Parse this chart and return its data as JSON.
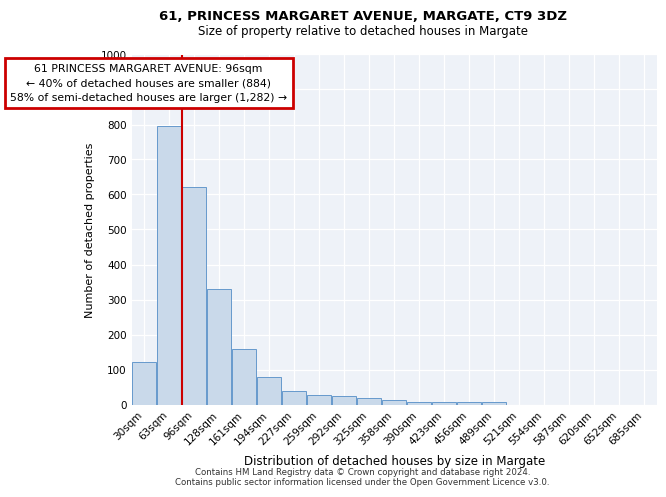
{
  "title1": "61, PRINCESS MARGARET AVENUE, MARGATE, CT9 3DZ",
  "title2": "Size of property relative to detached houses in Margate",
  "xlabel": "Distribution of detached houses by size in Margate",
  "ylabel": "Number of detached properties",
  "categories": [
    "30sqm",
    "63sqm",
    "96sqm",
    "128sqm",
    "161sqm",
    "194sqm",
    "227sqm",
    "259sqm",
    "292sqm",
    "325sqm",
    "358sqm",
    "390sqm",
    "423sqm",
    "456sqm",
    "489sqm",
    "521sqm",
    "554sqm",
    "587sqm",
    "620sqm",
    "652sqm",
    "685sqm"
  ],
  "values": [
    122,
    795,
    620,
    330,
    160,
    78,
    40,
    28,
    25,
    20,
    13,
    7,
    7,
    8,
    8,
    0,
    0,
    0,
    0,
    0,
    0
  ],
  "bar_color": "#c9d9ea",
  "bar_edge_color": "#6699cc",
  "red_line_x": 1.5,
  "red_line_color": "#cc0000",
  "ylim": [
    0,
    1000
  ],
  "yticks": [
    0,
    100,
    200,
    300,
    400,
    500,
    600,
    700,
    800,
    900,
    1000
  ],
  "annotation_title": "61 PRINCESS MARGARET AVENUE: 96sqm",
  "annotation_line2": "← 40% of detached houses are smaller (884)",
  "annotation_line3": "58% of semi-detached houses are larger (1,282) →",
  "annotation_box_color": "#cc0000",
  "bg_color": "#eef2f8",
  "footer1": "Contains HM Land Registry data © Crown copyright and database right 2024.",
  "footer2": "Contains public sector information licensed under the Open Government Licence v3.0."
}
